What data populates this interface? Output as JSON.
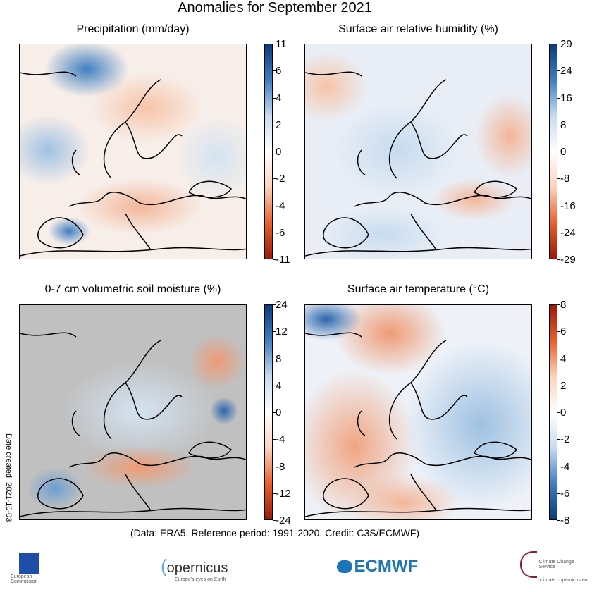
{
  "title": "Anomalies for September 2021",
  "panels": [
    {
      "title": "Precipitation (mm/day)",
      "ticks": [
        "11",
        "6",
        "4",
        "2",
        "0",
        "-2",
        "-4",
        "-6",
        "-11"
      ],
      "colorbar": [
        "#0b3a7a",
        "#3f7fc0",
        "#c6dbef",
        "#ffffff",
        "#fbd3bc",
        "#e8602a",
        "#9a1a08"
      ],
      "land_mask": false
    },
    {
      "title": "Surface air relative humidity (%)",
      "ticks": [
        "29",
        "24",
        "16",
        "8",
        "0",
        "-8",
        "-16",
        "-24",
        "-29"
      ],
      "colorbar": [
        "#0b3a7a",
        "#3f7fc0",
        "#c6dbef",
        "#ffffff",
        "#fbd3bc",
        "#e8602a",
        "#9a1a08"
      ],
      "land_mask": false
    },
    {
      "title": "0-7 cm volumetric soil moisture (%)",
      "ticks": [
        "24",
        "12",
        "8",
        "4",
        "0",
        "-4",
        "-8",
        "-12",
        "-24"
      ],
      "colorbar": [
        "#0b3a7a",
        "#3f7fc0",
        "#c6dbef",
        "#ffffff",
        "#fbd3bc",
        "#e8602a",
        "#9a1a08"
      ],
      "land_mask": true
    },
    {
      "title": "Surface air temperature (°C)",
      "ticks": [
        "8",
        "6",
        "4",
        "2",
        "0",
        "-2",
        "-4",
        "-6",
        "-8"
      ],
      "colorbar": [
        "#9a1a08",
        "#e8602a",
        "#fbd3bc",
        "#ffffff",
        "#c6dbef",
        "#3f7fc0",
        "#0b3a7a"
      ],
      "land_mask": false
    }
  ],
  "credit": "(Data: ERA5.  Reference period: 1991-2020.  Credit: C3S/ECMWF)",
  "date_created": "Date created: 2021-10-03",
  "logos": {
    "ec": "European Commission",
    "copernicus": "opernicus",
    "copernicus_tag": "Europe's eyes on Earth",
    "ecmwf": "ECMWF",
    "c3s": "Climate Change Service",
    "c3s_url": "climate.copernicus.eu"
  }
}
